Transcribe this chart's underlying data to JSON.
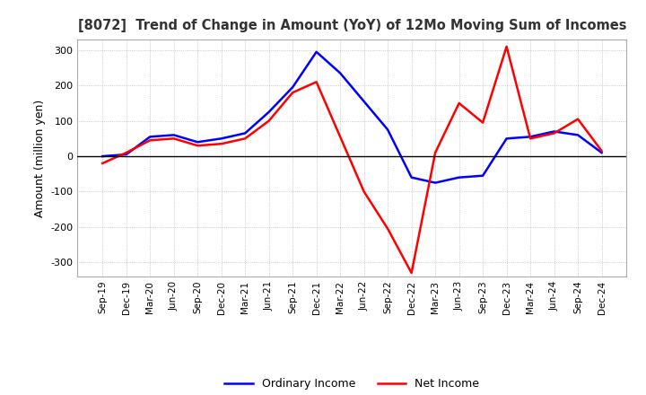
{
  "title": "[8072]  Trend of Change in Amount (YoY) of 12Mo Moving Sum of Incomes",
  "ylabel": "Amount (million yen)",
  "ylim": [
    -340,
    330
  ],
  "yticks": [
    -300,
    -200,
    -100,
    0,
    100,
    200,
    300
  ],
  "background_color": "#ffffff",
  "grid_color": "#aaaaaa",
  "labels": [
    "Sep-19",
    "Dec-19",
    "Mar-20",
    "Jun-20",
    "Sep-20",
    "Dec-20",
    "Mar-21",
    "Jun-21",
    "Sep-21",
    "Dec-21",
    "Mar-22",
    "Jun-22",
    "Sep-22",
    "Dec-22",
    "Mar-23",
    "Jun-23",
    "Sep-23",
    "Dec-23",
    "Mar-24",
    "Jun-24",
    "Sep-24",
    "Dec-24"
  ],
  "ordinary_income": [
    0,
    5,
    55,
    60,
    40,
    50,
    65,
    125,
    195,
    295,
    235,
    155,
    75,
    -60,
    -75,
    -60,
    -55,
    50,
    55,
    70,
    60,
    10
  ],
  "net_income": [
    -20,
    10,
    45,
    50,
    30,
    35,
    50,
    100,
    180,
    210,
    55,
    -100,
    -205,
    -330,
    10,
    150,
    95,
    310,
    50,
    65,
    105,
    15
  ],
  "ordinary_color": "#0000ff",
  "net_color": "#ff0000",
  "line_width": 1.8
}
